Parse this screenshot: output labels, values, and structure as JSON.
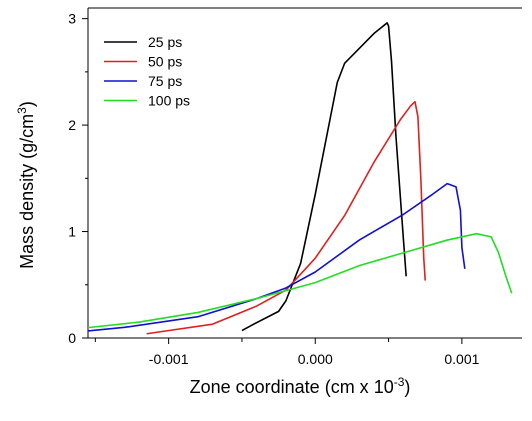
{
  "chart_data": {
    "type": "line",
    "title": "",
    "xlabel": "Zone coordinate (cm x 10",
    "xlabel_sup": "-3",
    "xlabel_end": ")",
    "ylabel": "Mass density (g/cm",
    "ylabel_sup": "3",
    "ylabel_end": ")",
    "xlim": [
      -0.00155,
      0.00141
    ],
    "ylim": [
      0,
      3.1
    ],
    "x_ticks": [
      -0.001,
      0.0,
      0.001
    ],
    "x_tick_labels": [
      "-0.001",
      "0.000",
      "0.001"
    ],
    "y_ticks": [
      0,
      1,
      2,
      3
    ],
    "y_tick_labels": [
      "0",
      "1",
      "2",
      "3"
    ],
    "grid": false,
    "legend_position": "top-left",
    "series": [
      {
        "name": "25 ps",
        "color": "#000000",
        "x": [
          -0.0005,
          -0.00042,
          -0.00025,
          -0.0002,
          -0.0001,
          0.0,
          0.0001,
          0.00015,
          0.0002,
          0.0003,
          0.0004,
          0.00049,
          0.0005,
          0.00052,
          0.00055,
          0.0006,
          0.00062
        ],
        "y": [
          0.07,
          0.13,
          0.25,
          0.35,
          0.7,
          1.35,
          2.05,
          2.4,
          2.58,
          2.72,
          2.86,
          2.96,
          2.93,
          2.6,
          1.9,
          0.95,
          0.58
        ]
      },
      {
        "name": "50 ps",
        "color": "#e02020",
        "x": [
          -0.00115,
          -0.0007,
          -0.0004,
          -0.0002,
          0.0,
          0.0002,
          0.0004,
          0.00058,
          0.00065,
          0.00068,
          0.0007,
          0.00072,
          0.00074,
          0.00075
        ],
        "y": [
          0.04,
          0.13,
          0.3,
          0.45,
          0.75,
          1.15,
          1.65,
          2.05,
          2.18,
          2.22,
          2.08,
          1.5,
          0.75,
          0.54
        ]
      },
      {
        "name": "75 ps",
        "color": "#1010d0",
        "x": [
          -0.0016,
          -0.0013,
          -0.0008,
          -0.0004,
          -0.0002,
          0.0,
          0.0003,
          0.0006,
          0.0008,
          0.0009,
          0.00096,
          0.00099,
          0.001,
          0.00102
        ],
        "y": [
          0.06,
          0.1,
          0.2,
          0.37,
          0.47,
          0.62,
          0.92,
          1.16,
          1.35,
          1.45,
          1.42,
          1.2,
          0.85,
          0.65
        ]
      },
      {
        "name": "100 ps",
        "color": "#22dd22",
        "x": [
          -0.0016,
          -0.0012,
          -0.0008,
          -0.0004,
          0.0,
          0.0003,
          0.0006,
          0.0009,
          0.0011,
          0.0012,
          0.00125,
          0.0013,
          0.00134
        ],
        "y": [
          0.09,
          0.15,
          0.24,
          0.37,
          0.52,
          0.68,
          0.8,
          0.92,
          0.98,
          0.95,
          0.8,
          0.58,
          0.42
        ]
      }
    ]
  }
}
